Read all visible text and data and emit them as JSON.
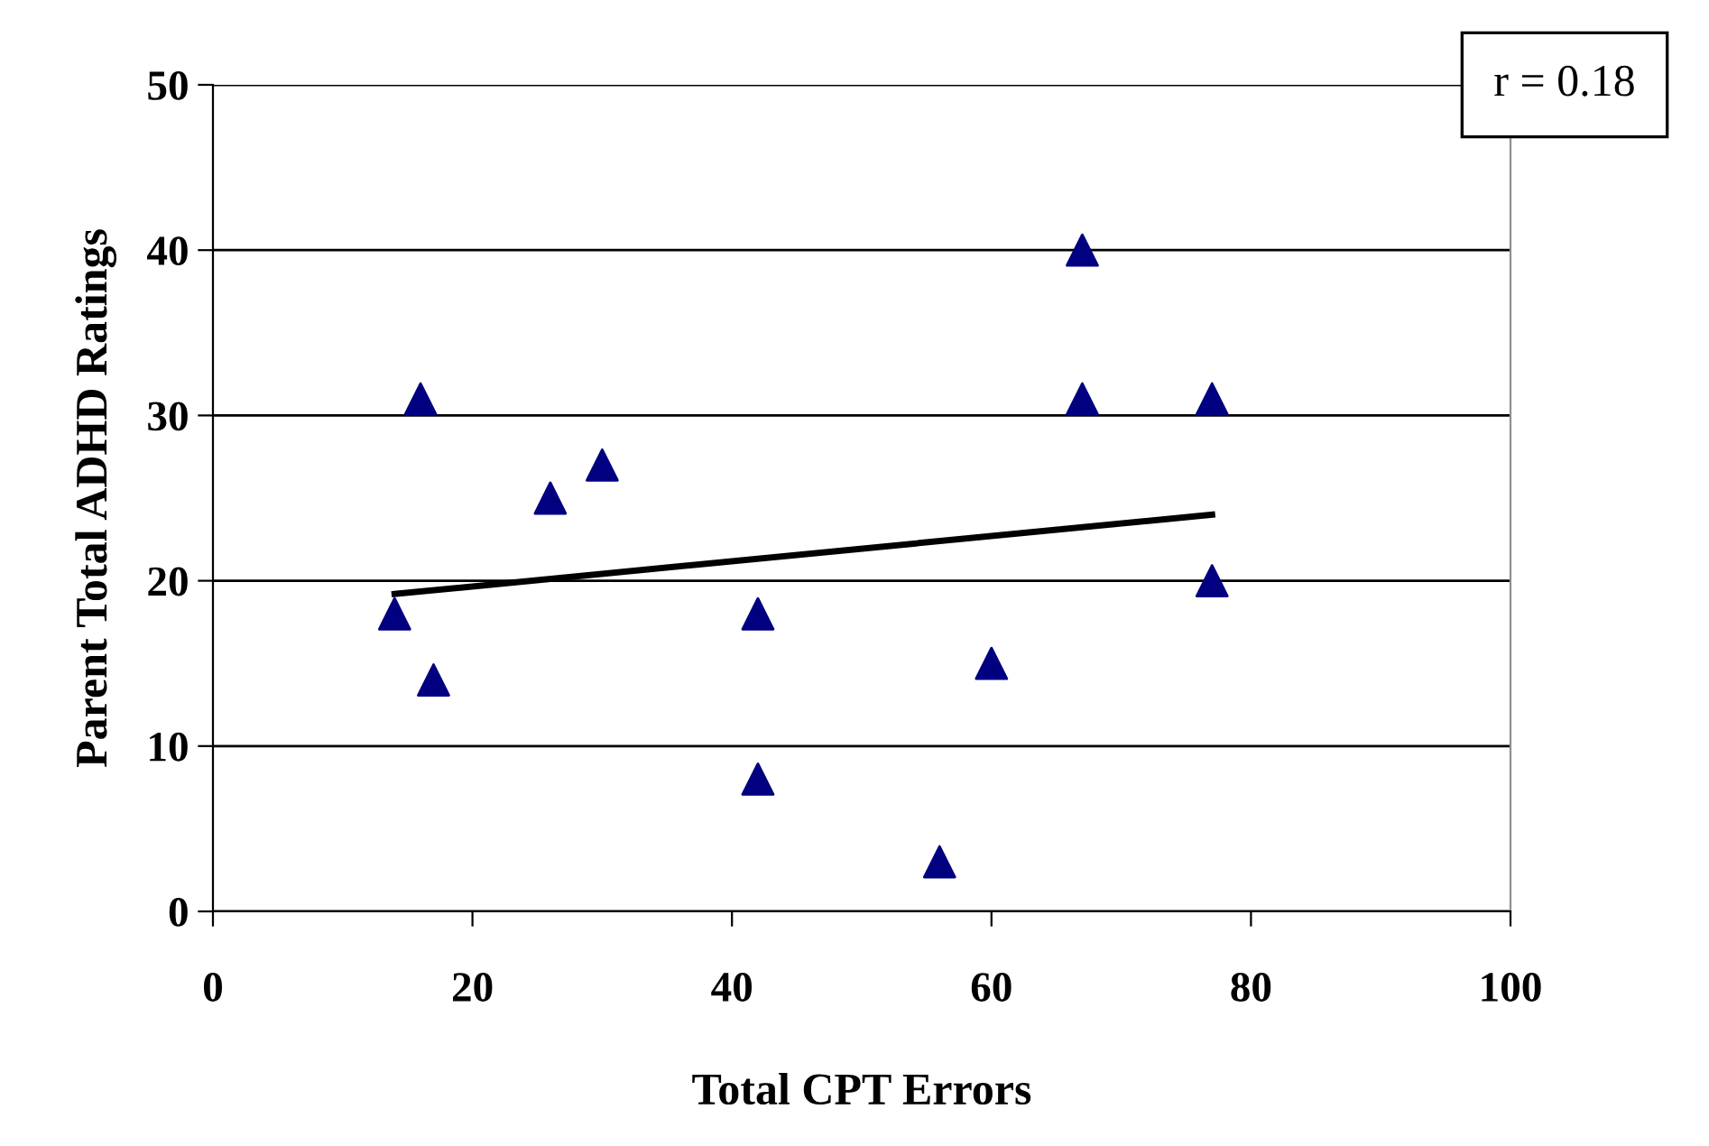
{
  "chart_data": {
    "type": "scatter",
    "xlabel": "Total CPT Errors",
    "ylabel": "Parent Total ADHD Ratings",
    "annotations": [
      "r = 0.18"
    ],
    "series": [
      {
        "color": "#000080",
        "marker": "triangle",
        "x": [
          14,
          16,
          17,
          26,
          30,
          42,
          42,
          56,
          60,
          67,
          67,
          77,
          77
        ],
        "values": [
          18,
          31,
          14,
          25,
          27,
          18,
          8,
          3,
          15,
          40,
          31,
          31,
          20
        ]
      },
      {
        "type": "line",
        "color": "#000000",
        "marker": "none",
        "line_style": "solid",
        "x": [
          14,
          77
        ],
        "values": [
          19.2,
          24
        ]
      }
    ],
    "xlim": [
      0,
      100
    ],
    "xticks": [
      0,
      20,
      40,
      60,
      80,
      100
    ],
    "ylim": [
      0,
      50
    ],
    "yticks": [
      0,
      10,
      20,
      30,
      40,
      50
    ],
    "grid": "y"
  }
}
